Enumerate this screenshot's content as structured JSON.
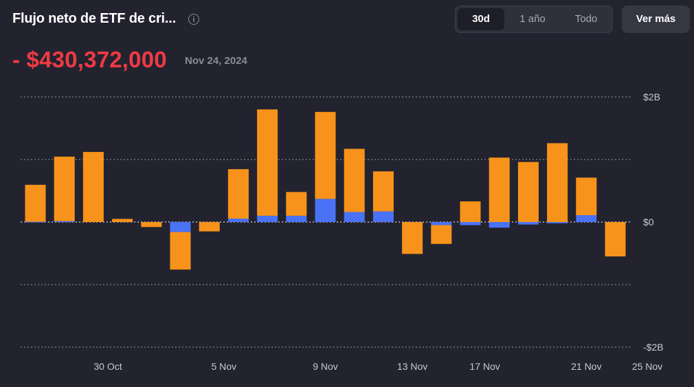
{
  "header": {
    "title": "Flujo neto de ETF de cri...",
    "info_icon": "info-icon",
    "tabs": [
      {
        "label": "30d",
        "active": true
      },
      {
        "label": "1 año",
        "active": false
      },
      {
        "label": "Todo",
        "active": false
      }
    ],
    "more_label": "Ver más"
  },
  "summary": {
    "value": "- $430,372,000",
    "date": "Nov 24, 2024"
  },
  "colors": {
    "orange": "#f7931a",
    "blue": "#4a72f5",
    "value_red": "#ef3a44",
    "background": "#23232f"
  },
  "chart_data": {
    "type": "bar",
    "stacked": true,
    "ylim": [
      -2000000000,
      2000000000
    ],
    "y_tick_labels": [
      "$2B",
      "$0",
      "-$2B"
    ],
    "y_tick_values": [
      2000000000,
      0,
      -2000000000
    ],
    "x_tick_labels": [
      "30 Oct",
      "5 Nov",
      "9 Nov",
      "13 Nov",
      "17 Nov",
      "21 Nov",
      "25 Nov"
    ],
    "x_tick_index": [
      2.5,
      6.5,
      10,
      13,
      15.5,
      19,
      22
    ],
    "grid": true,
    "series": [
      {
        "color": "#4a72f5",
        "values": [
          5000000,
          15000000,
          0,
          0,
          0,
          -160000000,
          0,
          55000000,
          100000000,
          100000000,
          370000000,
          160000000,
          170000000,
          0,
          -50000000,
          -50000000,
          -90000000,
          -40000000,
          -20000000,
          110000000,
          0
        ]
      },
      {
        "color": "#f7931a",
        "values": [
          590000000,
          1030000000,
          1120000000,
          50000000,
          -80000000,
          -600000000,
          -150000000,
          790000000,
          1700000000,
          380000000,
          1390000000,
          1010000000,
          640000000,
          -510000000,
          -300000000,
          330000000,
          1030000000,
          960000000,
          1260000000,
          600000000,
          -550000000
        ]
      }
    ]
  }
}
